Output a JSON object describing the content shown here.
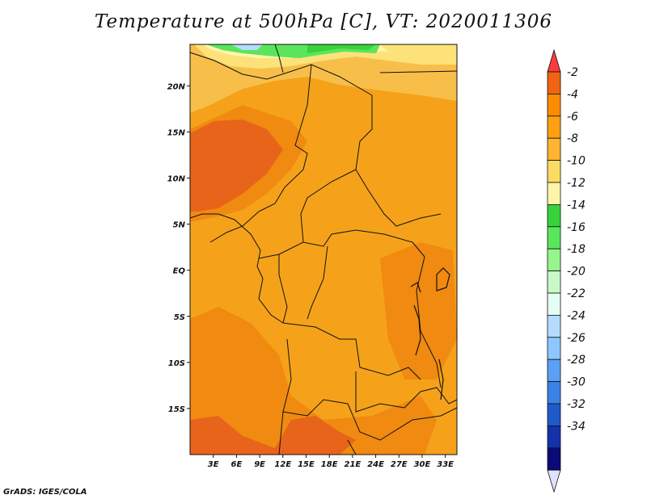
{
  "title": "Temperature at 500hPa [C], VT: 2020011306",
  "footer": "GrADS: IGES/COLA",
  "map": {
    "lon_range": [
      0,
      34.5
    ],
    "lat_range": [
      -20,
      24.5
    ],
    "lon_ticks": [
      "3E",
      "6E",
      "9E",
      "12E",
      "15E",
      "18E",
      "21E",
      "24E",
      "27E",
      "30E",
      "33E"
    ],
    "lat_ticks": [
      "20N",
      "15N",
      "10N",
      "5N",
      "EQ",
      "5S",
      "10S",
      "15S"
    ]
  },
  "colorbar": {
    "labels": [
      "-2",
      "-4",
      "-6",
      "-8",
      "-10",
      "-12",
      "-14",
      "-16",
      "-18",
      "-20",
      "-22",
      "-24",
      "-26",
      "-28",
      "-30",
      "-32",
      "-34"
    ],
    "colors": [
      "#fa3c3c",
      "#f06414",
      "#ff8c00",
      "#ffa014",
      "#ffb432",
      "#fadc64",
      "#fff5aa",
      "#37d23c",
      "#5ae65a",
      "#96f58c",
      "#c8fac8",
      "#e6fff5",
      "#b4dcff",
      "#8cc8ff",
      "#5aa0f5",
      "#3c82e6",
      "#1e5ac8",
      "#1432aa",
      "#0a0a78",
      "#e1e1ff"
    ]
  }
}
